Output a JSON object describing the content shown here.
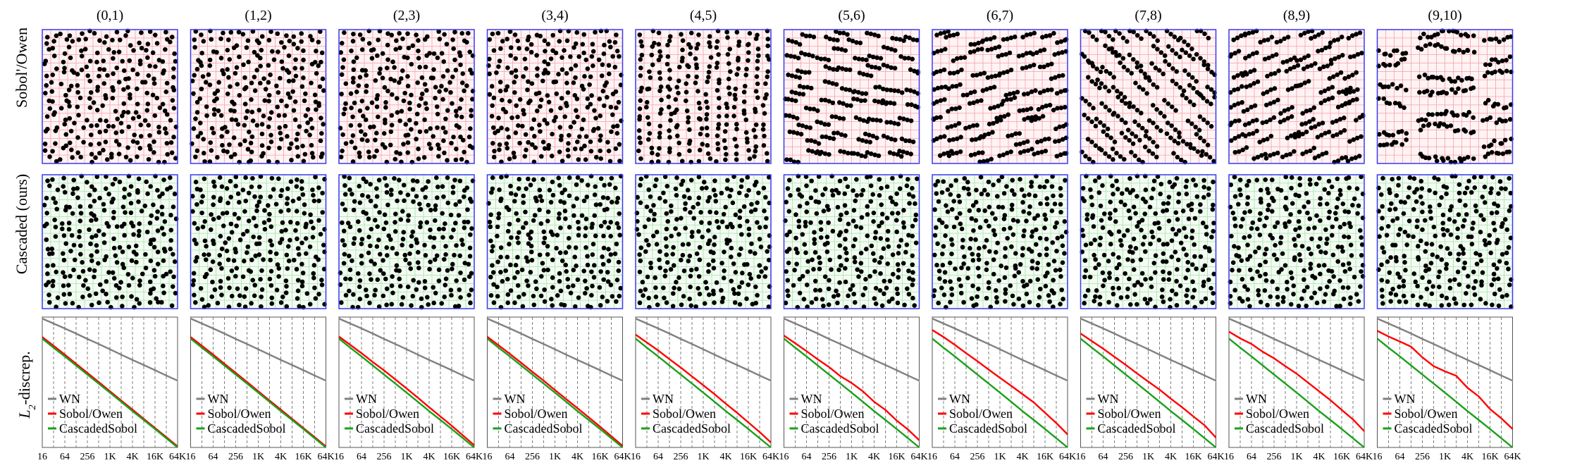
{
  "figure": {
    "row_labels": [
      "Sobol'/Owen",
      "Cascaded (ours)"
    ],
    "discrepancy_ylabel_main": "L",
    "discrepancy_ylabel_sub": "2",
    "discrepancy_ylabel_rest": "-discrep.",
    "colors": {
      "frame": "#3a3af0",
      "sobol_grid": "#f4a0a8",
      "sobol_bg": "#fff3f4",
      "cascaded_grid": "#a8e0a8",
      "cascaded_bg": "#f3fcf3",
      "dot": "#000000",
      "wn_line": "#808080",
      "sobol_line": "#ff0000",
      "cascaded_line": "#1aa01a",
      "vline": "#707070"
    },
    "icons": []
  },
  "chart_data": {
    "type": "line",
    "x_ticks": [
      "16",
      "64",
      "256",
      "1K",
      "4K",
      "16K",
      "64K"
    ],
    "x": [
      16,
      32,
      64,
      128,
      256,
      512,
      1024,
      2048,
      4096,
      8192,
      16384,
      32768,
      65536
    ],
    "x_scale": "log2",
    "legend": [
      "WN",
      "Sobol/Owen",
      "CascadedSobol"
    ],
    "legend_placement": "bottom-left",
    "panels": [
      {
        "title": "(0,1)",
        "dims": [
          0,
          1
        ],
        "series": [
          {
            "name": "WN",
            "values": [
              0.02,
              0.0145,
              0.0105,
              0.0075,
              0.0053,
              0.0038,
              0.0027,
              0.0019,
              0.00135,
              0.00097,
              0.00069,
              0.00049,
              0.00035
            ]
          },
          {
            "name": "Sobol/Owen",
            "values": [
              0.006,
              0.0034,
              0.0019,
              0.00105,
              0.00058,
              0.00032,
              0.000175,
              9.6e-05,
              5.3e-05,
              2.9e-05,
              1.6e-05,
              8.8e-06,
              4.8e-06
            ]
          },
          {
            "name": "CascadedSobol",
            "values": [
              0.0054,
              0.003,
              0.0017,
              0.00094,
              0.00052,
              0.00029,
              0.00016,
              8.8e-05,
              4.8e-05,
              2.7e-05,
              1.5e-05,
              8.2e-06,
              4.5e-06
            ]
          }
        ]
      },
      {
        "title": "(1,2)",
        "dims": [
          1,
          2
        ],
        "series": [
          {
            "name": "WN",
            "values": [
              0.02,
              0.0145,
              0.0105,
              0.0075,
              0.0053,
              0.0038,
              0.0027,
              0.0019,
              0.00135,
              0.00097,
              0.00069,
              0.00049,
              0.00035
            ]
          },
          {
            "name": "Sobol/Owen",
            "values": [
              0.006,
              0.0034,
              0.0019,
              0.00105,
              0.00058,
              0.00032,
              0.000175,
              9.6e-05,
              5.3e-05,
              2.9e-05,
              1.6e-05,
              8.8e-06,
              4.8e-06
            ]
          },
          {
            "name": "CascadedSobol",
            "values": [
              0.0054,
              0.003,
              0.0017,
              0.00094,
              0.00052,
              0.00029,
              0.00016,
              8.8e-05,
              4.8e-05,
              2.7e-05,
              1.5e-05,
              8.2e-06,
              4.5e-06
            ]
          }
        ]
      },
      {
        "title": "(2,3)",
        "dims": [
          2,
          3
        ],
        "series": [
          {
            "name": "WN",
            "values": [
              0.02,
              0.0145,
              0.0105,
              0.0075,
              0.0053,
              0.0038,
              0.0027,
              0.0019,
              0.00135,
              0.00097,
              0.00069,
              0.00049,
              0.00035
            ]
          },
          {
            "name": "Sobol/Owen",
            "values": [
              0.0062,
              0.0036,
              0.0021,
              0.00118,
              0.00068,
              0.00038,
              0.00021,
              0.000115,
              6.2e-05,
              3.4e-05,
              1.85e-05,
              9.8e-06,
              5.2e-06
            ]
          },
          {
            "name": "CascadedSobol",
            "values": [
              0.0054,
              0.003,
              0.0017,
              0.00094,
              0.00052,
              0.00029,
              0.00016,
              8.8e-05,
              4.8e-05,
              2.7e-05,
              1.5e-05,
              8.2e-06,
              4.5e-06
            ]
          }
        ]
      },
      {
        "title": "(3,4)",
        "dims": [
          3,
          4
        ],
        "series": [
          {
            "name": "WN",
            "values": [
              0.02,
              0.0145,
              0.0105,
              0.0075,
              0.0053,
              0.0038,
              0.0027,
              0.0019,
              0.00135,
              0.00097,
              0.00069,
              0.00049,
              0.00035
            ]
          },
          {
            "name": "Sobol/Owen",
            "values": [
              0.0061,
              0.0035,
              0.002,
              0.00112,
              0.00062,
              0.00035,
              0.00019,
              0.000105,
              5.8e-05,
              3.2e-05,
              1.75e-05,
              9.4e-06,
              5e-06
            ]
          },
          {
            "name": "CascadedSobol",
            "values": [
              0.0054,
              0.003,
              0.0017,
              0.00094,
              0.00052,
              0.00029,
              0.00016,
              8.8e-05,
              4.8e-05,
              2.7e-05,
              1.5e-05,
              8.2e-06,
              4.5e-06
            ]
          }
        ]
      },
      {
        "title": "(4,5)",
        "dims": [
          4,
          5
        ],
        "series": [
          {
            "name": "WN",
            "values": [
              0.02,
              0.0145,
              0.0105,
              0.0075,
              0.0053,
              0.0038,
              0.0027,
              0.0019,
              0.00135,
              0.00097,
              0.00069,
              0.00049,
              0.00035
            ]
          },
          {
            "name": "Sobol/Owen",
            "values": [
              0.007,
              0.0042,
              0.0025,
              0.00142,
              0.00082,
              0.00046,
              0.00026,
              0.000145,
              7.8e-05,
              4.3e-05,
              2.3e-05,
              1.23e-05,
              6.2e-06
            ]
          },
          {
            "name": "CascadedSobol",
            "values": [
              0.0054,
              0.003,
              0.0017,
              0.00094,
              0.00052,
              0.00029,
              0.00016,
              8.8e-05,
              4.8e-05,
              2.7e-05,
              1.5e-05,
              8.2e-06,
              4.5e-06
            ]
          }
        ]
      },
      {
        "title": "(5,6)",
        "dims": [
          5,
          6
        ],
        "series": [
          {
            "name": "WN",
            "values": [
              0.02,
              0.0145,
              0.0105,
              0.0075,
              0.0053,
              0.0038,
              0.0027,
              0.0019,
              0.00135,
              0.00097,
              0.00069,
              0.00049,
              0.00035
            ]
          },
          {
            "name": "Sobol/Owen",
            "values": [
              0.0066,
              0.004,
              0.0024,
              0.0014,
              0.00085,
              0.00047,
              0.0003,
              0.000175,
              8.8e-05,
              5.2e-05,
              2.6e-05,
              1.45e-05,
              7.2e-06
            ]
          },
          {
            "name": "CascadedSobol",
            "values": [
              0.0054,
              0.003,
              0.0017,
              0.00094,
              0.00052,
              0.00029,
              0.00016,
              8.8e-05,
              4.8e-05,
              2.7e-05,
              1.5e-05,
              8.2e-06,
              4.5e-06
            ]
          }
        ]
      },
      {
        "title": "(6,7)",
        "dims": [
          6,
          7
        ],
        "series": [
          {
            "name": "WN",
            "values": [
              0.02,
              0.0145,
              0.0105,
              0.0075,
              0.0053,
              0.0038,
              0.0027,
              0.0019,
              0.00135,
              0.00097,
              0.00069,
              0.00049,
              0.00035
            ]
          },
          {
            "name": "Sobol/Owen",
            "values": [
              0.0095,
              0.006,
              0.0036,
              0.0021,
              0.00125,
              0.00072,
              0.00042,
              0.00025,
              0.000145,
              8.5e-05,
              4.3e-05,
              2.2e-05,
              1.05e-05
            ]
          },
          {
            "name": "CascadedSobol",
            "values": [
              0.0054,
              0.003,
              0.0017,
              0.00094,
              0.00052,
              0.00029,
              0.00016,
              8.8e-05,
              4.8e-05,
              2.7e-05,
              1.5e-05,
              8.2e-06,
              4.5e-06
            ]
          }
        ]
      },
      {
        "title": "(7,8)",
        "dims": [
          7,
          8
        ],
        "series": [
          {
            "name": "WN",
            "values": [
              0.02,
              0.0145,
              0.0105,
              0.0075,
              0.0053,
              0.0038,
              0.0027,
              0.0019,
              0.00135,
              0.00097,
              0.00069,
              0.00049,
              0.00035
            ]
          },
          {
            "name": "Sobol/Owen",
            "values": [
              0.0075,
              0.0046,
              0.0028,
              0.00165,
              0.00098,
              0.00056,
              0.00033,
              0.000195,
              0.000108,
              6.2e-05,
              3.4e-05,
              1.9e-05,
              8.5e-06
            ]
          },
          {
            "name": "CascadedSobol",
            "values": [
              0.0054,
              0.003,
              0.0017,
              0.00094,
              0.00052,
              0.00029,
              0.00016,
              8.8e-05,
              4.8e-05,
              2.7e-05,
              1.5e-05,
              8.2e-06,
              4.5e-06
            ]
          }
        ]
      },
      {
        "title": "(8,9)",
        "dims": [
          8,
          9
        ],
        "series": [
          {
            "name": "WN",
            "values": [
              0.02,
              0.0145,
              0.0105,
              0.0075,
              0.0053,
              0.0038,
              0.0027,
              0.0019,
              0.00135,
              0.00097,
              0.00069,
              0.00049,
              0.00035
            ]
          },
          {
            "name": "Sobol/Owen",
            "values": [
              0.0085,
              0.0055,
              0.0038,
              0.0023,
              0.0015,
              0.0009,
              0.00055,
              0.00031,
              0.000175,
              9.8e-05,
              5.2e-05,
              2.8e-05,
              1.3e-05
            ]
          },
          {
            "name": "CascadedSobol",
            "values": [
              0.0054,
              0.003,
              0.0017,
              0.00094,
              0.00052,
              0.00029,
              0.00016,
              8.8e-05,
              4.8e-05,
              2.7e-05,
              1.5e-05,
              8.2e-06,
              4.5e-06
            ]
          }
        ]
      },
      {
        "title": "(9,10)",
        "dims": [
          9,
          10
        ],
        "series": [
          {
            "name": "WN",
            "values": [
              0.02,
              0.0145,
              0.0105,
              0.0075,
              0.0053,
              0.0038,
              0.0027,
              0.0019,
              0.00135,
              0.00097,
              0.00069,
              0.00049,
              0.00035
            ]
          },
          {
            "name": "Sobol/Owen",
            "values": [
              0.009,
              0.0062,
              0.0045,
              0.0032,
              0.0016,
              0.0009,
              0.00064,
              0.00048,
              0.00022,
              0.000125,
              5.5e-05,
              3e-05,
              1.5e-05
            ]
          },
          {
            "name": "CascadedSobol",
            "values": [
              0.0054,
              0.003,
              0.0017,
              0.00094,
              0.00052,
              0.00029,
              0.00016,
              8.8e-05,
              4.8e-05,
              2.7e-05,
              1.5e-05,
              8.2e-06,
              4.5e-06
            ]
          }
        ]
      }
    ]
  }
}
